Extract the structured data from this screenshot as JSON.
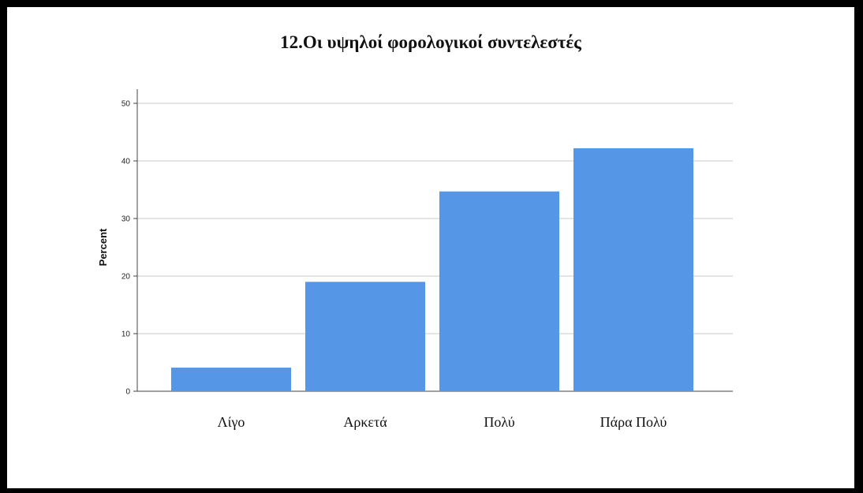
{
  "chart_data": {
    "type": "bar",
    "title": "12.Οι υψηλοί φορολογικοί συντελεστές",
    "xlabel": "",
    "ylabel": "Percent",
    "categories": [
      "Λίγο",
      "Αρκετά",
      "Πολύ",
      "Πάρα Πολύ"
    ],
    "values": [
      4.1,
      19.0,
      34.7,
      42.2
    ],
    "ylim": [
      0,
      50
    ],
    "yticks": [
      0,
      10,
      20,
      30,
      40,
      50
    ],
    "grid": true,
    "bar_color": "#5596e6"
  }
}
